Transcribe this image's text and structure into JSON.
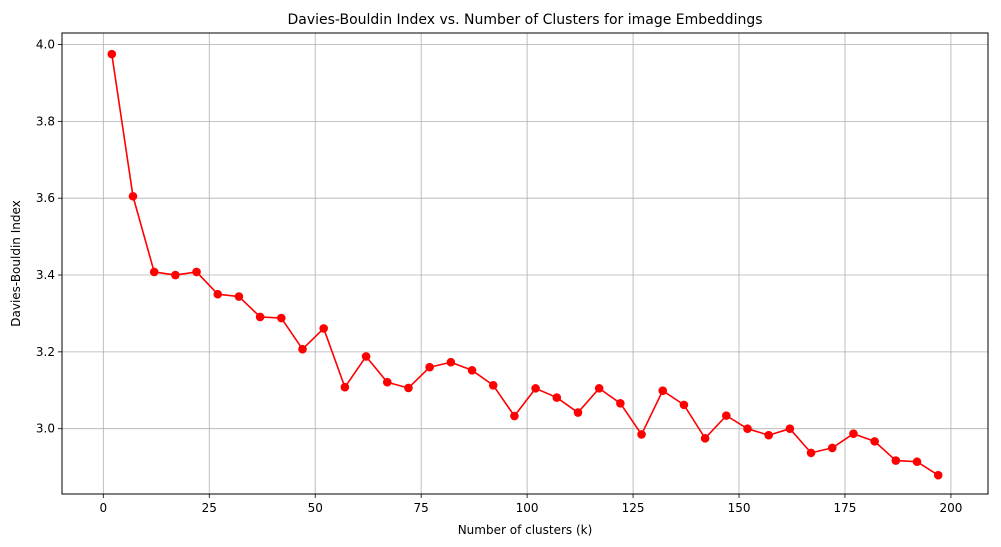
{
  "chart_data": {
    "type": "line",
    "title": "Davies-Bouldin Index vs. Number of Clusters for image Embeddings",
    "xlabel": "Number of clusters (k)",
    "ylabel": "Davies-Bouldin Index",
    "xlim": [
      -9.75,
      208.75
    ],
    "ylim": [
      2.83,
      4.03
    ],
    "xticks": [
      0,
      25,
      50,
      75,
      100,
      125,
      150,
      175,
      200
    ],
    "xtick_labels": [
      "0",
      "25",
      "50",
      "75",
      "100",
      "125",
      "150",
      "175",
      "200"
    ],
    "yticks": [
      3.0,
      3.2,
      3.4,
      3.6,
      3.8,
      4.0
    ],
    "ytick_labels": [
      "3.0",
      "3.2",
      "3.4",
      "3.6",
      "3.8",
      "4.0"
    ],
    "grid": true,
    "color": "#ff0000",
    "marker": "circle",
    "x": [
      2,
      7,
      12,
      17,
      22,
      27,
      32,
      37,
      42,
      47,
      52,
      57,
      62,
      67,
      72,
      77,
      82,
      87,
      92,
      97,
      102,
      107,
      112,
      117,
      122,
      127,
      132,
      137,
      142,
      147,
      152,
      157,
      162,
      167,
      172,
      177,
      182,
      187,
      192,
      197
    ],
    "y": [
      3.975,
      3.605,
      3.408,
      3.4,
      3.408,
      3.35,
      3.344,
      3.291,
      3.288,
      3.207,
      3.261,
      3.108,
      3.188,
      3.121,
      3.106,
      3.16,
      3.173,
      3.152,
      3.113,
      3.033,
      3.105,
      3.081,
      3.042,
      3.105,
      3.066,
      2.985,
      3.099,
      3.062,
      2.975,
      3.034,
      3.0,
      2.983,
      3.0,
      2.937,
      2.95,
      2.987,
      2.967,
      2.917,
      2.914,
      2.879
    ]
  }
}
